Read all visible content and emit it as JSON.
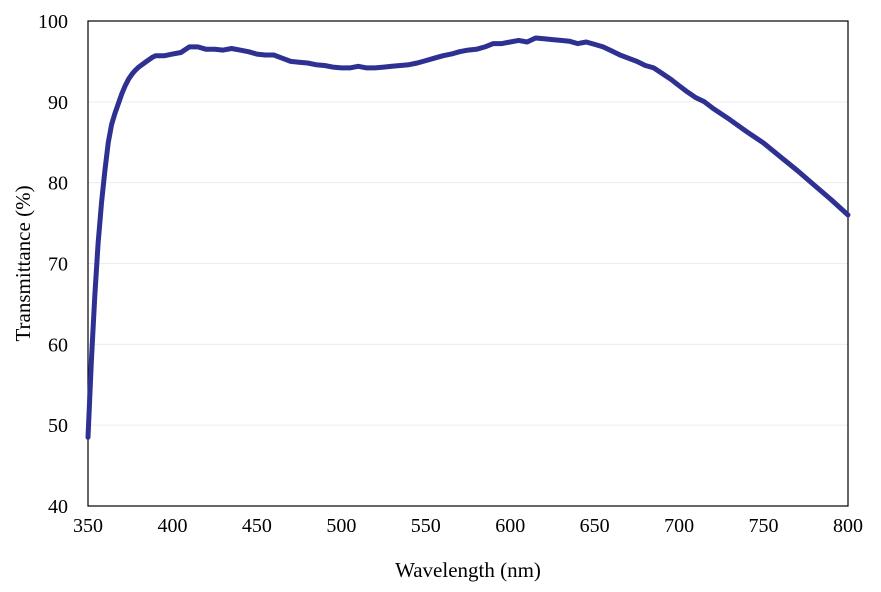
{
  "chart_data": {
    "type": "line",
    "title": "",
    "xlabel": "Wavelength  (nm)",
    "ylabel": "Transmittance  (%)",
    "xlim": [
      350,
      800
    ],
    "ylim": [
      40,
      100
    ],
    "x_ticks": [
      350,
      400,
      450,
      500,
      550,
      600,
      650,
      700,
      750,
      800
    ],
    "y_ticks": [
      40,
      50,
      60,
      70,
      80,
      90,
      100
    ],
    "grid": true,
    "legend": "none",
    "series": [
      {
        "color": "#2e3192",
        "x": [
          350,
          352,
          354,
          356,
          358,
          360,
          362,
          364,
          366,
          368,
          370,
          372,
          374,
          376,
          378,
          380,
          384,
          388,
          390,
          395,
          400,
          405,
          410,
          415,
          420,
          425,
          430,
          435,
          440,
          445,
          450,
          455,
          460,
          465,
          470,
          475,
          480,
          485,
          490,
          495,
          500,
          505,
          510,
          515,
          520,
          525,
          530,
          535,
          540,
          545,
          550,
          555,
          560,
          565,
          570,
          575,
          580,
          585,
          590,
          595,
          600,
          605,
          610,
          615,
          620,
          625,
          630,
          635,
          640,
          645,
          650,
          655,
          660,
          665,
          670,
          675,
          680,
          685,
          690,
          695,
          700,
          705,
          710,
          715,
          720,
          730,
          740,
          750,
          760,
          770,
          780,
          790,
          800
        ],
        "y": [
          48.5,
          58,
          66,
          72.5,
          77.5,
          81.5,
          85,
          87.2,
          88.6,
          89.8,
          91,
          92,
          92.8,
          93.4,
          93.9,
          94.3,
          94.9,
          95.5,
          95.7,
          95.7,
          95.9,
          96.1,
          96.8,
          96.8,
          96.5,
          96.5,
          96.4,
          96.6,
          96.4,
          96.2,
          95.9,
          95.8,
          95.8,
          95.4,
          95.0,
          94.9,
          94.8,
          94.6,
          94.5,
          94.3,
          94.2,
          94.2,
          94.4,
          94.2,
          94.2,
          94.3,
          94.4,
          94.5,
          94.6,
          94.8,
          95.1,
          95.4,
          95.7,
          95.9,
          96.2,
          96.4,
          96.5,
          96.8,
          97.2,
          97.2,
          97.4,
          97.6,
          97.4,
          97.9,
          97.8,
          97.7,
          97.6,
          97.5,
          97.2,
          97.4,
          97.1,
          96.8,
          96.3,
          95.8,
          95.4,
          95.0,
          94.5,
          94.2,
          93.5,
          92.8,
          92.0,
          91.2,
          90.5,
          90.0,
          89.2,
          87.8,
          86.3,
          84.9,
          83.2,
          81.5,
          79.7,
          77.9,
          76.0
        ]
      }
    ]
  }
}
